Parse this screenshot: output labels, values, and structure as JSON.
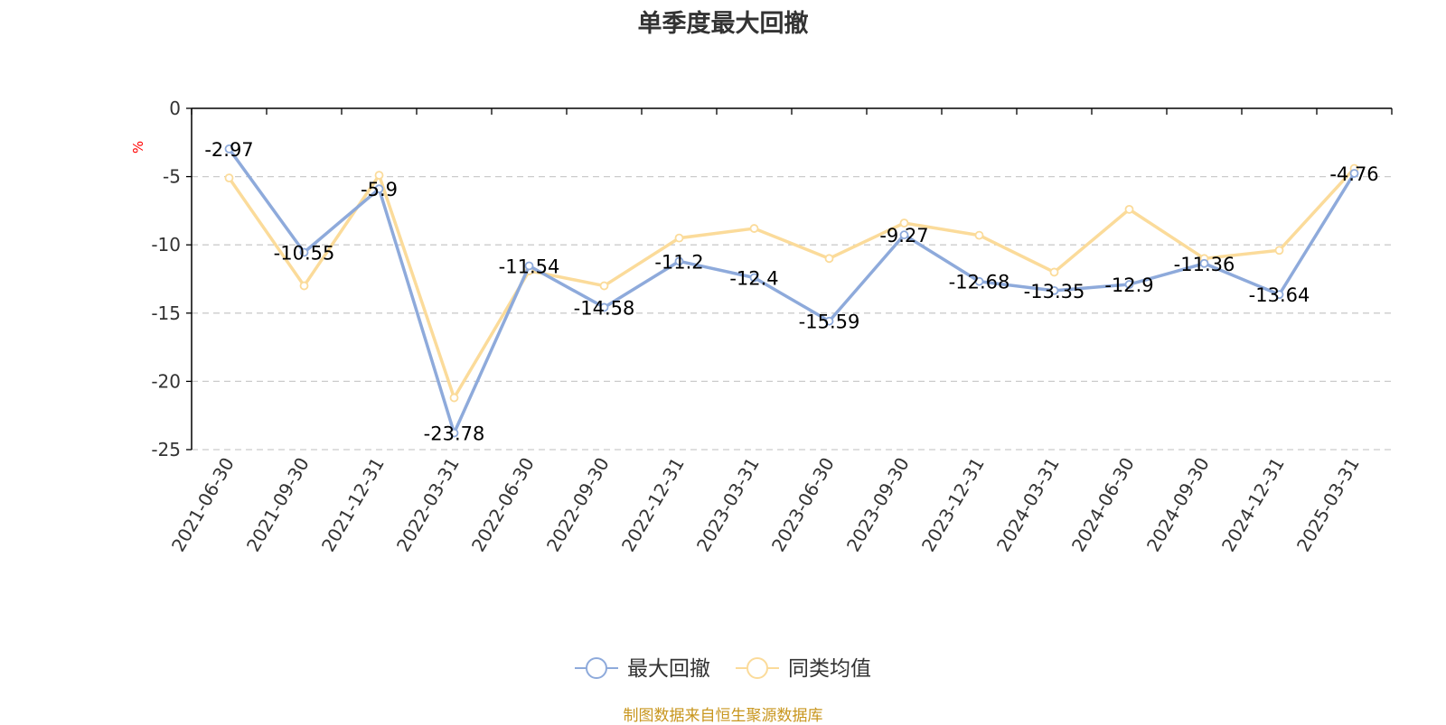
{
  "title": "单季度最大回撤",
  "footer": "制图数据来自恒生聚源数据库",
  "colors": {
    "series1": "#8eaadb",
    "series2": "#fbdb9a",
    "axis": "#000000",
    "grid": "#cccccc",
    "unit": "#ff0000",
    "footer": "#c8961e",
    "title": "#333333"
  },
  "legend": {
    "items": [
      {
        "label": "最大回撤",
        "icon": "circle-line-marker-icon"
      },
      {
        "label": "同类均值",
        "icon": "circle-line-marker-icon"
      }
    ]
  },
  "chart_data": {
    "type": "line",
    "title": "单季度最大回撤",
    "ylabel": "%",
    "xlabel": "",
    "ylim": [
      -25,
      0
    ],
    "yticks": [
      0,
      -5,
      -10,
      -15,
      -20,
      -25
    ],
    "grid": true,
    "legend_position": "bottom",
    "categories": [
      "2021-06-30",
      "2021-09-30",
      "2021-12-31",
      "2022-03-31",
      "2022-06-30",
      "2022-09-30",
      "2022-12-31",
      "2023-03-31",
      "2023-06-30",
      "2023-09-30",
      "2023-12-31",
      "2024-03-31",
      "2024-06-30",
      "2024-09-30",
      "2024-12-31",
      "2025-03-31"
    ],
    "series": [
      {
        "name": "最大回撤",
        "values": [
          -2.97,
          -10.55,
          -5.9,
          -23.78,
          -11.54,
          -14.58,
          -11.2,
          -12.4,
          -15.59,
          -9.27,
          -12.68,
          -13.35,
          -12.9,
          -11.36,
          -13.64,
          -4.76
        ],
        "labels": [
          "-2.97",
          "-10.55",
          "-5.9",
          "-23.78",
          "-11.54",
          "-14.58",
          "-11.2",
          "-12.4",
          "-15.59",
          "-9.27",
          "-12.68",
          "-13.35",
          "-12.9",
          "-11.36",
          "-13.64",
          "-4.76"
        ]
      },
      {
        "name": "同类均值",
        "values": [
          -5.1,
          -13.0,
          -4.9,
          -21.2,
          -11.9,
          -13.0,
          -9.5,
          -8.8,
          -11.0,
          -8.4,
          -9.3,
          -12.0,
          -7.4,
          -11.0,
          -10.4,
          -4.4
        ]
      }
    ]
  }
}
